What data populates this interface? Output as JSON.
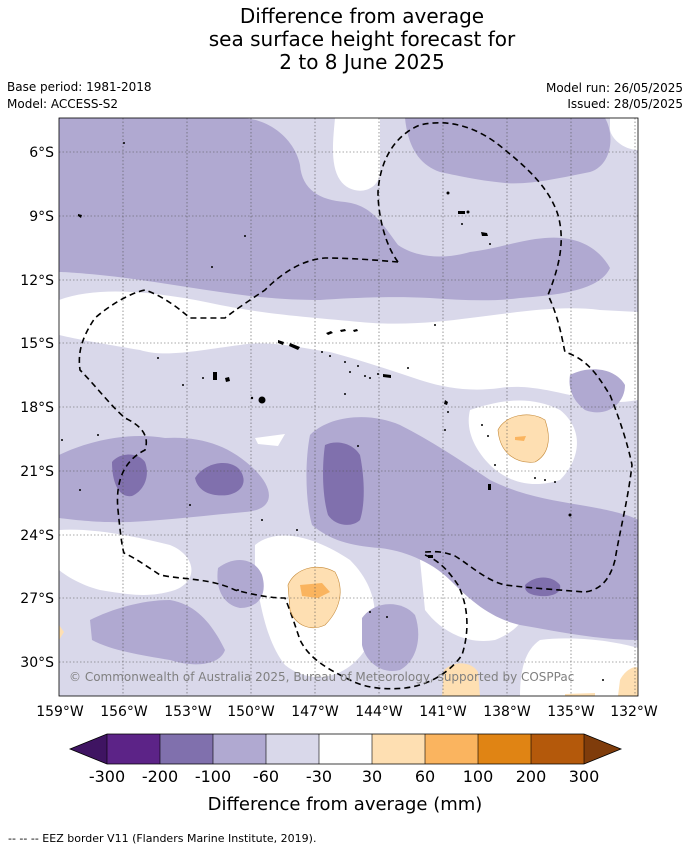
{
  "title": {
    "line1": "Difference from average",
    "line2": "sea surface height forecast for",
    "line3": "2 to 8 June 2025"
  },
  "meta": {
    "base_period": "Base period: 1981-2018",
    "model": "Model: ACCESS-S2",
    "model_run": "Model run: 26/05/2025",
    "issued": "Issued: 28/05/2025"
  },
  "map": {
    "credit": "© Commonwealth of Australia 2025, Bureau of Meteorology, supported by COSPPac",
    "lat_labels": [
      "6°S",
      "9°S",
      "12°S",
      "15°S",
      "18°S",
      "21°S",
      "24°S",
      "27°S",
      "30°S"
    ],
    "lon_labels": [
      "159°W",
      "156°W",
      "153°W",
      "150°W",
      "147°W",
      "144°W",
      "141°W",
      "138°W",
      "135°W",
      "132°W"
    ]
  },
  "legend": {
    "title": "Difference from average (mm)",
    "ticks": [
      "-300",
      "-200",
      "-100",
      "-60",
      "-30",
      "30",
      "60",
      "100",
      "200",
      "300"
    ],
    "colors": [
      "#3f1462",
      "#5c2387",
      "#8070ad",
      "#b0a9d1",
      "#d9d8ea",
      "#ffffff",
      "#fedfb2",
      "#fab45f",
      "#e08414",
      "#b4590b",
      "#7f3c0b"
    ]
  },
  "footer": "-- -- -- EEZ border V11 (Flanders Marine Institute, 2019)."
}
